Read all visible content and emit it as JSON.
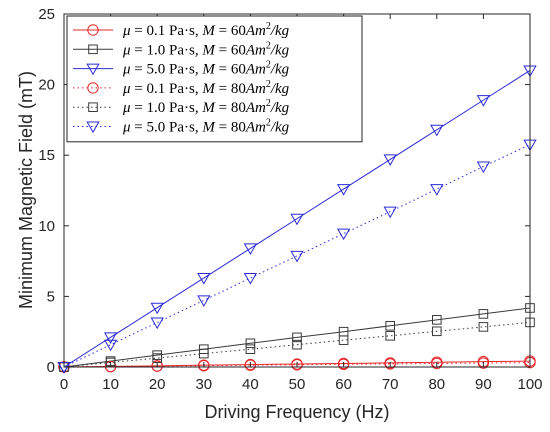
{
  "chart_data": {
    "type": "line",
    "xlabel": "Driving Frequency (Hz)",
    "ylabel": "Minimum Magnetic Field (mT)",
    "xlim": [
      0,
      100
    ],
    "ylim": [
      0,
      25
    ],
    "xticks": [
      "0",
      "10",
      "20",
      "30",
      "40",
      "50",
      "60",
      "70",
      "80",
      "90",
      "100"
    ],
    "yticks": [
      "0",
      "5",
      "10",
      "15",
      "20",
      "25"
    ],
    "grid": false,
    "legend_position": "top-left",
    "x": [
      0,
      10,
      20,
      30,
      40,
      50,
      60,
      70,
      80,
      90,
      100
    ],
    "series": [
      {
        "name": "μ = 0.1 Pa·s, M = 60Am²/kg",
        "color": "#e8262a",
        "marker": "circle",
        "line": "solid",
        "values": [
          0,
          0.04,
          0.08,
          0.13,
          0.17,
          0.21,
          0.25,
          0.29,
          0.34,
          0.38,
          0.42
        ]
      },
      {
        "name": "μ = 1.0 Pa·s, M = 60Am²/kg",
        "color": "#3a3a3a",
        "marker": "square",
        "line": "solid",
        "values": [
          0,
          0.42,
          0.84,
          1.26,
          1.68,
          2.1,
          2.5,
          2.92,
          3.34,
          3.76,
          4.18
        ]
      },
      {
        "name": "μ = 5.0 Pa·s, M = 60Am²/kg",
        "color": "#2a2ad8",
        "marker": "triangle-down",
        "line": "solid",
        "values": [
          0,
          2.1,
          4.2,
          6.3,
          8.4,
          10.5,
          12.6,
          14.7,
          16.8,
          18.9,
          21.0
        ]
      },
      {
        "name": "μ = 0.1 Pa·s, M = 80Am²/kg",
        "color": "#e8262a",
        "marker": "circle",
        "line": "dotted",
        "values": [
          0,
          0.03,
          0.06,
          0.09,
          0.13,
          0.16,
          0.19,
          0.22,
          0.25,
          0.28,
          0.31
        ]
      },
      {
        "name": "μ = 1.0 Pa·s, M = 80Am²/kg",
        "color": "#3a3a3a",
        "marker": "square",
        "line": "dotted",
        "values": [
          0,
          0.32,
          0.63,
          0.95,
          1.26,
          1.58,
          1.9,
          2.21,
          2.53,
          2.84,
          3.16
        ]
      },
      {
        "name": "μ = 5.0 Pa·s, M = 80Am²/kg",
        "color": "#2a2ad8",
        "marker": "triangle-down",
        "line": "dotted",
        "values": [
          0,
          1.58,
          3.15,
          4.72,
          6.3,
          7.87,
          9.45,
          11.0,
          12.6,
          14.2,
          15.75
        ]
      }
    ],
    "legend": [
      {
        "mu_value": "0.1",
        "m_value": "60"
      },
      {
        "mu_value": "1.0",
        "m_value": "60"
      },
      {
        "mu_value": "5.0",
        "m_value": "60"
      },
      {
        "mu_value": "0.1",
        "m_value": "80"
      },
      {
        "mu_value": "1.0",
        "m_value": "80"
      },
      {
        "mu_value": "5.0",
        "m_value": "80"
      }
    ],
    "legend_parts": {
      "mu_symbol": "μ",
      "eq": " = ",
      "unit": " Pa·s, ",
      "m_symbol": "M",
      "m_unit": "Am",
      "exponent": "2",
      "per": "/kg"
    }
  }
}
